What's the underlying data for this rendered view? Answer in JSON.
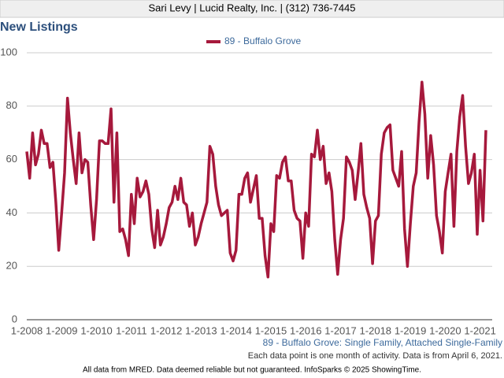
{
  "header": "Sari Levy | Lucid Realty, Inc. | (312) 736-7445",
  "chart_data": {
    "type": "line",
    "title": "New Listings",
    "categories": [
      "1-2008",
      null,
      null,
      null,
      null,
      null,
      null,
      null,
      null,
      null,
      null,
      null,
      "1-2009",
      null,
      null,
      null,
      null,
      null,
      null,
      null,
      null,
      null,
      null,
      null,
      "1-2010",
      null,
      null,
      null,
      null,
      null,
      null,
      null,
      null,
      null,
      null,
      null,
      "1-2011",
      null,
      null,
      null,
      null,
      null,
      null,
      null,
      null,
      null,
      null,
      null,
      "1-2012",
      null,
      null,
      null,
      null,
      null,
      null,
      null,
      null,
      null,
      null,
      null,
      "1-2013",
      null,
      null,
      null,
      null,
      null,
      null,
      null,
      null,
      null,
      null,
      null,
      "1-2014",
      null,
      null,
      null,
      null,
      null,
      null,
      null,
      null,
      null,
      null,
      null,
      "1-2015",
      null,
      null,
      null,
      null,
      null,
      null,
      null,
      null,
      null,
      null,
      null,
      "1-2016",
      null,
      null,
      null,
      null,
      null,
      null,
      null,
      null,
      null,
      null,
      null,
      "1-2017",
      null,
      null,
      null,
      null,
      null,
      null,
      null,
      null,
      null,
      null,
      null,
      "1-2018",
      null,
      null,
      null,
      null,
      null,
      null,
      null,
      null,
      null,
      null,
      null,
      "1-2019",
      null,
      null,
      null,
      null,
      null,
      null,
      null,
      null,
      null,
      null,
      null,
      "1-2020",
      null,
      null,
      null,
      null,
      null,
      null,
      null,
      null,
      null,
      null,
      null,
      "1-2021",
      null,
      null
    ],
    "series": [
      {
        "name": "89 - Buffalo Grove",
        "color": "#a6193c",
        "values": [
          63,
          53,
          70,
          58,
          62,
          71,
          66,
          66,
          57,
          59,
          44,
          26,
          40,
          55,
          83,
          70,
          60,
          51,
          70,
          55,
          60,
          59,
          43,
          30,
          45,
          67,
          67,
          66,
          66,
          79,
          44,
          70,
          33,
          34,
          30,
          24,
          47,
          36,
          53,
          46,
          48,
          52,
          47,
          34,
          27,
          41,
          28,
          31,
          36,
          42,
          44,
          50,
          45,
          53,
          44,
          43,
          35,
          40,
          28,
          31,
          36,
          40,
          44,
          65,
          62,
          50,
          43,
          39,
          40,
          41,
          25,
          22,
          26,
          47,
          47,
          53,
          55,
          44,
          49,
          54,
          38,
          38,
          24,
          16,
          36,
          33,
          54,
          53,
          59,
          61,
          52,
          52,
          41,
          38,
          37,
          23,
          40,
          35,
          62,
          61,
          71,
          60,
          65,
          51,
          55,
          48,
          30,
          17,
          30,
          38,
          61,
          59,
          56,
          45,
          55,
          66,
          47,
          42,
          38,
          21,
          37,
          39,
          62,
          70,
          72,
          73,
          56,
          53,
          50,
          63,
          34,
          20,
          36,
          50,
          55,
          74,
          89,
          77,
          53,
          69,
          58,
          39,
          33,
          25,
          48,
          55,
          62,
          35,
          63,
          76,
          84,
          65,
          51,
          55,
          62,
          32,
          56,
          37,
          71
        ]
      }
    ],
    "ylim": [
      0,
      100
    ],
    "yticks": [
      0,
      20,
      40,
      60,
      80,
      100
    ],
    "grid": true,
    "subtitle": "89 - Buffalo Grove: Single Family, Attached Single-Family",
    "note": "Each data point is one month of activity. Data is from April 6, 2021."
  },
  "footer": "All data from MRED. Data deemed reliable but not guaranteed. InfoSparks © 2025 ShowingTime."
}
